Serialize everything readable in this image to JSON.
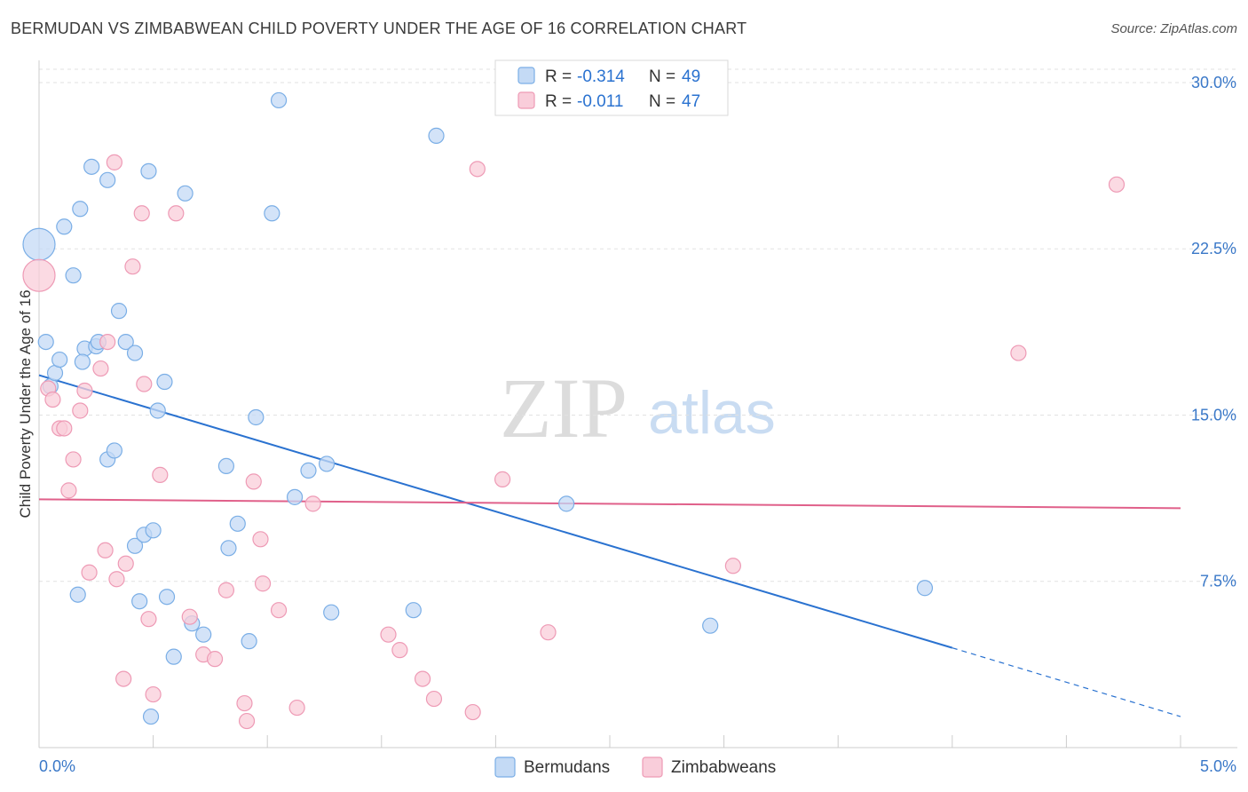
{
  "header": {
    "title": "BERMUDAN VS ZIMBABWEAN CHILD POVERTY UNDER THE AGE OF 16 CORRELATION CHART",
    "source": "Source: ZipAtlas.com"
  },
  "watermark": {
    "zip": "ZIP",
    "atlas": "atlas"
  },
  "legend_stats": [
    {
      "r_label": "R =",
      "r_value": "-0.314",
      "n_label": "N =",
      "n_value": "49",
      "color": "#a8c8f0"
    },
    {
      "r_label": "R =",
      "r_value": "-0.011",
      "n_label": "N =",
      "n_value": "47",
      "color": "#f5b8cb"
    }
  ],
  "chart_data": {
    "type": "scatter",
    "title": "BERMUDAN VS ZIMBABWEAN CHILD POVERTY UNDER THE AGE OF 16 CORRELATION CHART",
    "xlabel": "",
    "ylabel": "Child Poverty Under the Age of 16",
    "xlim": [
      0,
      5
    ],
    "ylim": [
      0,
      31
    ],
    "x_tick_labels": [
      "0.0%",
      "5.0%"
    ],
    "y_ticks": [
      7.5,
      15.0,
      22.5,
      30.0
    ],
    "y_tick_labels": [
      "7.5%",
      "15.0%",
      "22.5%",
      "30.0%"
    ],
    "grid": true,
    "legend_position": "bottom-center",
    "series": [
      {
        "name": "Bermudans",
        "color": "#7aaee6",
        "fill": "#c4daf5",
        "trend": {
          "x0": 0.0,
          "y0": 16.8,
          "x1": 4.0,
          "y1": 4.5,
          "dash_x1": 5.0,
          "dash_y1": 1.4,
          "color": "#2a72d0"
        },
        "points": [
          {
            "x": 0.0,
            "y": 22.7,
            "big": true
          },
          {
            "x": 0.03,
            "y": 18.3
          },
          {
            "x": 0.05,
            "y": 16.3
          },
          {
            "x": 0.07,
            "y": 16.9
          },
          {
            "x": 0.09,
            "y": 17.5
          },
          {
            "x": 0.11,
            "y": 23.5
          },
          {
            "x": 0.15,
            "y": 21.3
          },
          {
            "x": 0.18,
            "y": 24.3
          },
          {
            "x": 0.2,
            "y": 18.0
          },
          {
            "x": 0.23,
            "y": 26.2
          },
          {
            "x": 0.3,
            "y": 25.6
          },
          {
            "x": 0.25,
            "y": 18.1
          },
          {
            "x": 0.26,
            "y": 18.3
          },
          {
            "x": 0.35,
            "y": 19.7
          },
          {
            "x": 0.38,
            "y": 18.3
          },
          {
            "x": 0.42,
            "y": 17.8
          },
          {
            "x": 0.48,
            "y": 26.0
          },
          {
            "x": 0.55,
            "y": 16.5
          },
          {
            "x": 0.52,
            "y": 15.2
          },
          {
            "x": 0.64,
            "y": 25.0
          },
          {
            "x": 0.19,
            "y": 17.4
          },
          {
            "x": 0.3,
            "y": 13.0
          },
          {
            "x": 0.33,
            "y": 13.4
          },
          {
            "x": 0.42,
            "y": 9.1
          },
          {
            "x": 0.46,
            "y": 9.6
          },
          {
            "x": 0.5,
            "y": 9.8
          },
          {
            "x": 0.17,
            "y": 6.9
          },
          {
            "x": 0.44,
            "y": 6.6
          },
          {
            "x": 0.56,
            "y": 6.8
          },
          {
            "x": 0.59,
            "y": 4.1
          },
          {
            "x": 0.67,
            "y": 5.6
          },
          {
            "x": 0.72,
            "y": 5.1
          },
          {
            "x": 0.49,
            "y": 1.4
          },
          {
            "x": 0.82,
            "y": 12.7
          },
          {
            "x": 0.87,
            "y": 10.1
          },
          {
            "x": 0.83,
            "y": 9.0
          },
          {
            "x": 0.92,
            "y": 4.8
          },
          {
            "x": 0.95,
            "y": 14.9
          },
          {
            "x": 1.02,
            "y": 24.1
          },
          {
            "x": 1.05,
            "y": 29.2
          },
          {
            "x": 1.12,
            "y": 11.3
          },
          {
            "x": 1.18,
            "y": 12.5
          },
          {
            "x": 1.26,
            "y": 12.8
          },
          {
            "x": 1.28,
            "y": 6.1
          },
          {
            "x": 1.64,
            "y": 6.2
          },
          {
            "x": 1.74,
            "y": 27.6
          },
          {
            "x": 2.31,
            "y": 11.0
          },
          {
            "x": 2.94,
            "y": 5.5
          },
          {
            "x": 3.88,
            "y": 7.2
          }
        ]
      },
      {
        "name": "Zimbabweans",
        "color": "#ee9ab5",
        "fill": "#f9cdda",
        "trend": {
          "x0": 0.0,
          "y0": 11.2,
          "x1": 5.0,
          "y1": 10.8,
          "color": "#e0608a"
        },
        "points": [
          {
            "x": 0.0,
            "y": 21.3,
            "big": true
          },
          {
            "x": 0.04,
            "y": 16.2
          },
          {
            "x": 0.06,
            "y": 15.7
          },
          {
            "x": 0.09,
            "y": 14.4
          },
          {
            "x": 0.11,
            "y": 14.4
          },
          {
            "x": 0.13,
            "y": 11.6
          },
          {
            "x": 0.15,
            "y": 13.0
          },
          {
            "x": 0.18,
            "y": 15.2
          },
          {
            "x": 0.2,
            "y": 16.1
          },
          {
            "x": 0.27,
            "y": 17.1
          },
          {
            "x": 0.3,
            "y": 18.3
          },
          {
            "x": 0.33,
            "y": 26.4
          },
          {
            "x": 0.41,
            "y": 21.7
          },
          {
            "x": 0.46,
            "y": 16.4
          },
          {
            "x": 0.45,
            "y": 24.1
          },
          {
            "x": 0.6,
            "y": 24.1
          },
          {
            "x": 0.53,
            "y": 12.3
          },
          {
            "x": 0.22,
            "y": 7.9
          },
          {
            "x": 0.29,
            "y": 8.9
          },
          {
            "x": 0.34,
            "y": 7.6
          },
          {
            "x": 0.38,
            "y": 8.3
          },
          {
            "x": 0.37,
            "y": 3.1
          },
          {
            "x": 0.48,
            "y": 5.8
          },
          {
            "x": 0.5,
            "y": 2.4
          },
          {
            "x": 0.66,
            "y": 5.9
          },
          {
            "x": 0.72,
            "y": 4.2
          },
          {
            "x": 0.77,
            "y": 4.0
          },
          {
            "x": 0.82,
            "y": 7.1
          },
          {
            "x": 0.9,
            "y": 2.0
          },
          {
            "x": 0.91,
            "y": 1.2
          },
          {
            "x": 0.94,
            "y": 12.0
          },
          {
            "x": 0.97,
            "y": 9.4
          },
          {
            "x": 0.98,
            "y": 7.4
          },
          {
            "x": 1.05,
            "y": 6.2
          },
          {
            "x": 1.13,
            "y": 1.8
          },
          {
            "x": 1.2,
            "y": 11.0
          },
          {
            "x": 1.53,
            "y": 5.1
          },
          {
            "x": 1.58,
            "y": 4.4
          },
          {
            "x": 1.68,
            "y": 3.1
          },
          {
            "x": 1.73,
            "y": 2.2
          },
          {
            "x": 1.9,
            "y": 1.6
          },
          {
            "x": 1.92,
            "y": 26.1
          },
          {
            "x": 2.03,
            "y": 12.1
          },
          {
            "x": 2.23,
            "y": 5.2
          },
          {
            "x": 3.04,
            "y": 8.2
          },
          {
            "x": 4.29,
            "y": 17.8
          },
          {
            "x": 4.72,
            "y": 25.4
          }
        ]
      }
    ]
  }
}
